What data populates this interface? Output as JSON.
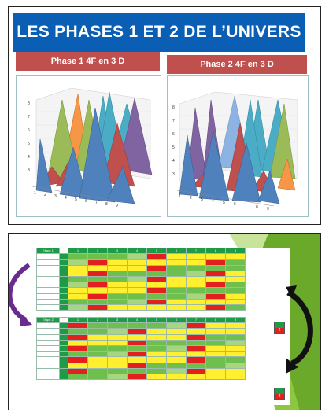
{
  "title": "LES PHASES 1  ET 2 DE L’UNIVERS",
  "phase1": {
    "label": "Phase 1 4F en 3 D"
  },
  "phase2": {
    "label": "Phase 2 4F en 3 D"
  },
  "chart_axis_ticks_y": [
    "0",
    "1",
    "2",
    "3",
    "4",
    "5",
    "6",
    "7",
    "8"
  ],
  "chart_axis_ticks_x": [
    "1",
    "2",
    "3",
    "4",
    "5",
    "6",
    "7",
    "8",
    "9"
  ],
  "colors": {
    "banner": "#0a5fb4",
    "phase_label": "#c0504d",
    "arrow_left": "#6a2a8f",
    "arrow_right": "#111111"
  },
  "sheet": {
    "block1_label": "Etape 1",
    "block2_label": "Etape 2",
    "side_badge1": "2",
    "side_badge2": "2",
    "header": [
      "1",
      "2",
      "3",
      "4",
      "5",
      "6",
      "7",
      "8",
      "9"
    ],
    "rows_count": 10
  }
}
